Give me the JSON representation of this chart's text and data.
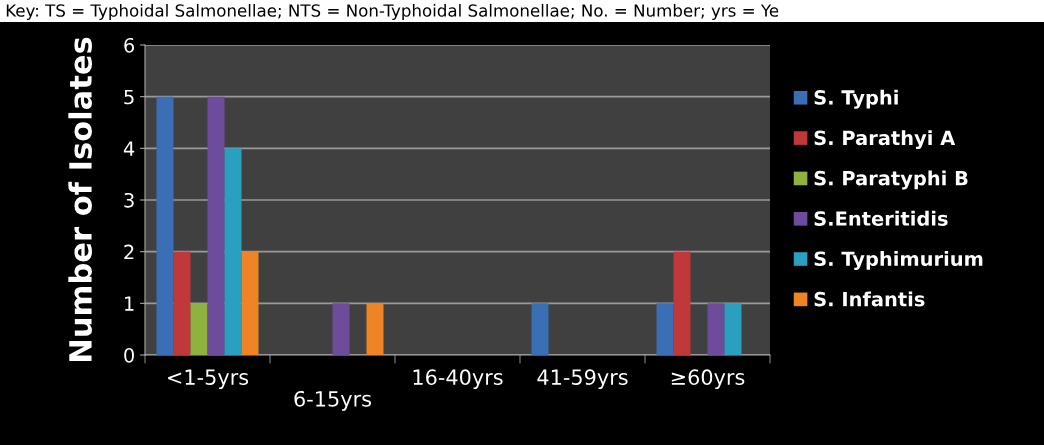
{
  "chart_data": {
    "type": "bar",
    "annotations": [
      "Key: TS = Typhoidal Salmonellae; NTS = Non-Typhoidal Salmonellae; No. = Number; yrs = Ye"
    ],
    "ylabel": "Number of Isolates",
    "categories": [
      "<1-5yrs",
      "6-15yrs",
      "16-40yrs",
      "41-59yrs",
      "≥60yrs"
    ],
    "series": [
      {
        "name": "S. Typhi",
        "color": "#3a6fb5",
        "values": [
          5,
          0,
          0,
          1,
          1
        ]
      },
      {
        "name": "S. Parathyi A",
        "color": "#c0383a",
        "values": [
          2,
          0,
          0,
          0,
          2
        ]
      },
      {
        "name": "S. Paratyphi B",
        "color": "#8fb23e",
        "values": [
          1,
          0,
          0,
          0,
          0
        ]
      },
      {
        "name": "S.Enteritidis",
        "color": "#6e4c9c",
        "values": [
          5,
          1,
          0,
          0,
          1
        ]
      },
      {
        "name": "S. Typhimurium",
        "color": "#2a9fc0",
        "values": [
          4,
          0,
          0,
          0,
          1
        ]
      },
      {
        "name": "S. Infantis",
        "color": "#ee8424",
        "values": [
          2,
          1,
          0,
          0,
          0
        ]
      }
    ],
    "ylim": [
      0,
      6
    ],
    "yticks": [
      0,
      1,
      2,
      3,
      4,
      5,
      6
    ],
    "grid": "y",
    "legend": "right"
  }
}
